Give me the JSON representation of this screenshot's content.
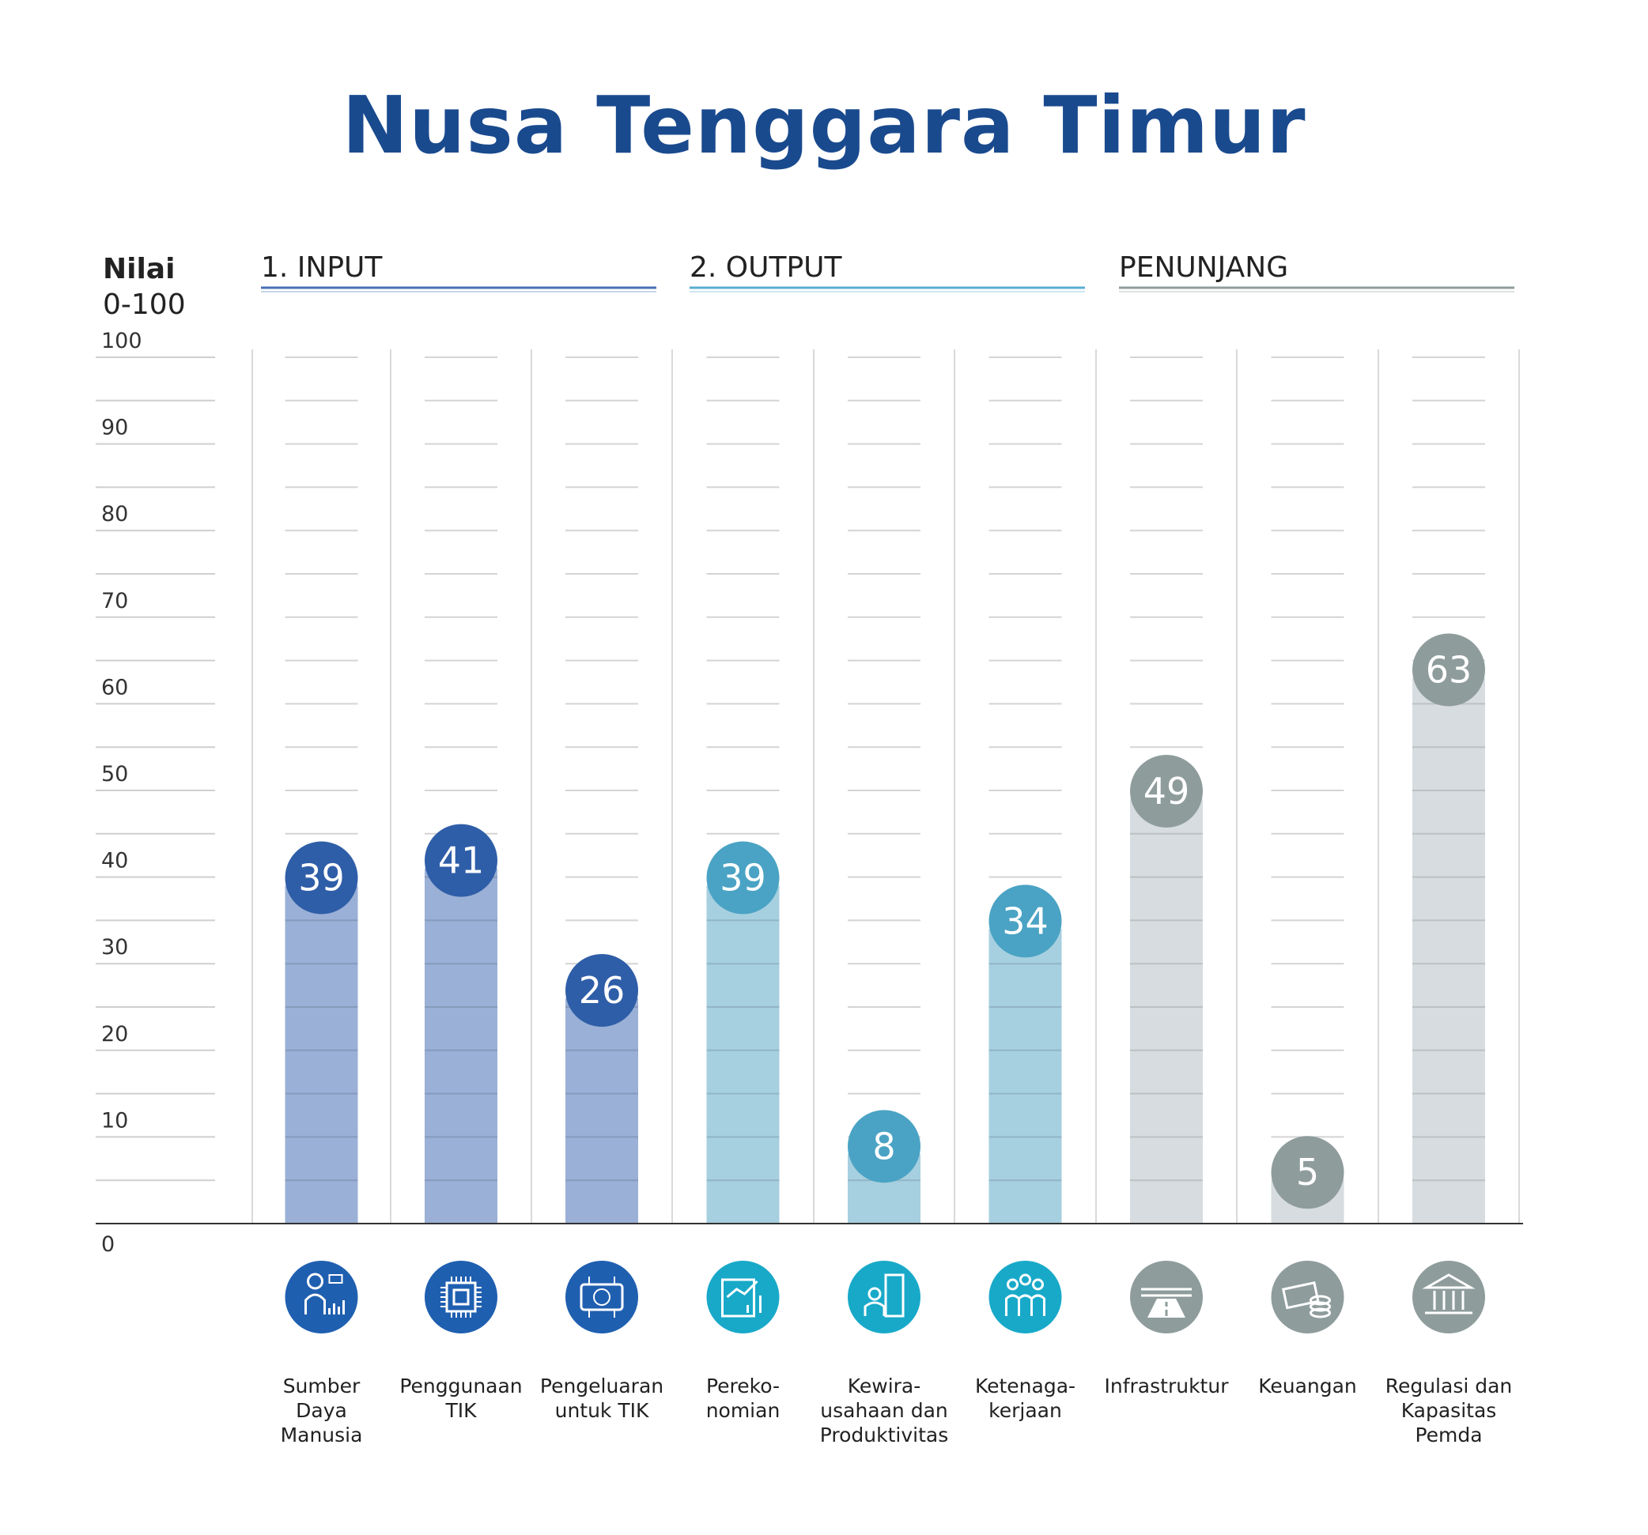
{
  "chart_data": {
    "type": "bar",
    "title": "Nusa Tenggara Timur",
    "ylabel": "Nilai",
    "ylabel_range": "0-100",
    "ylim": [
      0,
      100
    ],
    "yticks": [
      "0",
      "10",
      "20",
      "30",
      "40",
      "50",
      "60",
      "70",
      "80",
      "90",
      "100"
    ],
    "groups": [
      {
        "label": "1. INPUT",
        "color": "#4a6fb5",
        "categories": [
          0,
          1,
          2
        ]
      },
      {
        "label": "2. OUTPUT",
        "color": "#5aaed0",
        "categories": [
          3,
          4,
          5
        ]
      },
      {
        "label": "PENUNJANG",
        "color": "#8f9c9c",
        "categories": [
          6,
          7,
          8
        ]
      }
    ],
    "categories": [
      {
        "label": [
          "Sumber",
          "Daya",
          "Manusia"
        ],
        "icon": "person-analytics-icon"
      },
      {
        "label": [
          "Penggunaan",
          "TIK"
        ],
        "icon": "chip-icon"
      },
      {
        "label": [
          "Pengeluaran",
          "untuk TIK"
        ],
        "icon": "rupiah-circuit-icon"
      },
      {
        "label": [
          "Pereko-",
          "nomian"
        ],
        "icon": "economy-growth-icon"
      },
      {
        "label": [
          "Kewira-",
          "usahaan dan",
          "Produktivitas"
        ],
        "icon": "entrepreneur-building-icon"
      },
      {
        "label": [
          "Ketenaga-",
          "kerjaan"
        ],
        "icon": "workers-group-icon"
      },
      {
        "label": [
          "Infrastruktur"
        ],
        "icon": "road-icon"
      },
      {
        "label": [
          "Keuangan"
        ],
        "icon": "money-coins-icon"
      },
      {
        "label": [
          "Regulasi dan",
          "Kapasitas",
          "Pemda"
        ],
        "icon": "government-building-icon"
      }
    ],
    "values": [
      39,
      41,
      26,
      39,
      8,
      34,
      49,
      5,
      63
    ],
    "bar_colors": [
      "#9ab0d6",
      "#9ab0d6",
      "#9ab0d6",
      "#a6cfe0",
      "#a6cfe0",
      "#a6cfe0",
      "#d6dcdf",
      "#d6dcdf",
      "#d6dcdf"
    ],
    "bubble_colors": [
      "#2f5ea8",
      "#2f5ea8",
      "#2f5ea8",
      "#4aa3c4",
      "#4aa3c4",
      "#4aa3c4",
      "#8f9c9c",
      "#8f9c9c",
      "#8f9c9c"
    ],
    "icon_colors": [
      "#1f5fb0",
      "#1f5fb0",
      "#1f5fb0",
      "#18a9c9",
      "#18a9c9",
      "#18a9c9",
      "#8f9c9c",
      "#8f9c9c",
      "#8f9c9c"
    ],
    "grid": true,
    "legend": "none"
  }
}
